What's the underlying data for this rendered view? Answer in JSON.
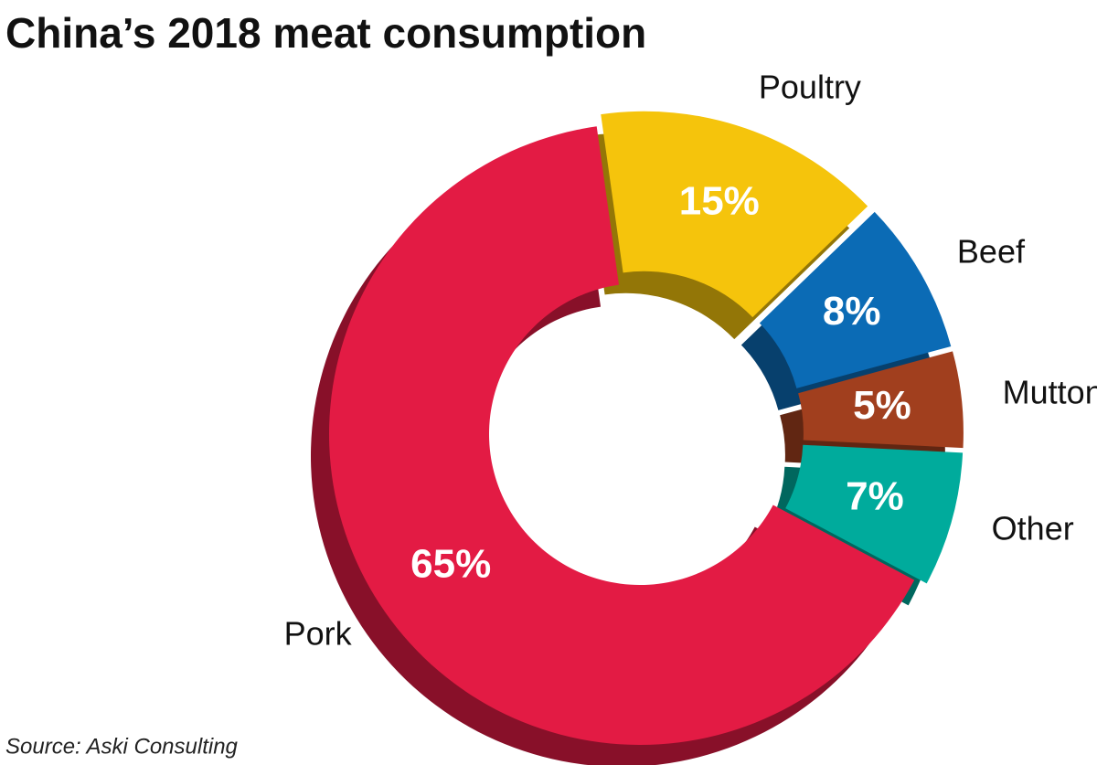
{
  "chart_data": {
    "type": "donut",
    "title": "China’s 2018 meat consumption",
    "source": "Source: Aski Consulting",
    "categories": [
      "Poultry",
      "Beef",
      "Mutton",
      "Other",
      "Pork"
    ],
    "values": [
      15,
      8,
      5,
      7,
      65
    ],
    "value_labels": [
      "15%",
      "8%",
      "5%",
      "7%",
      "65%"
    ],
    "colors": [
      "#f5c40c",
      "#0b6bb5",
      "#a13f1e",
      "#00ab9c",
      "#e31b44"
    ]
  }
}
